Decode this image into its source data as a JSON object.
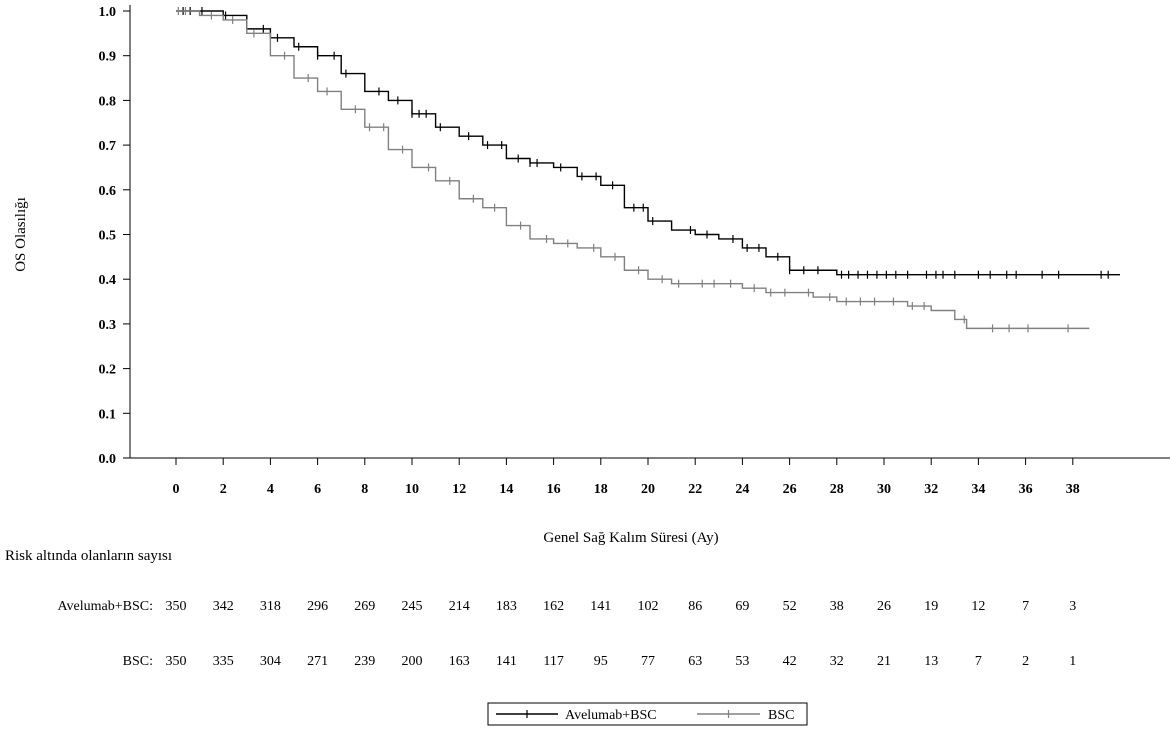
{
  "chart_data": {
    "type": "line",
    "xlabel": "Genel Sağ Kalım Süresi (Ay)",
    "ylabel": "OS Olasılığı",
    "xlim": [
      0,
      40
    ],
    "ylim": [
      0,
      1.0
    ],
    "x_ticks": [
      0,
      2,
      4,
      6,
      8,
      10,
      12,
      14,
      16,
      18,
      20,
      22,
      24,
      26,
      28,
      30,
      32,
      34,
      36,
      38
    ],
    "y_ticks": [
      "0.0",
      "0.1",
      "0.2",
      "0.3",
      "0.4",
      "0.5",
      "0.6",
      "0.7",
      "0.8",
      "0.9",
      "1.0"
    ],
    "grid": false,
    "legend_position": "bottom-center",
    "series": [
      {
        "name": "Avelumab+BSC",
        "color": "#000000",
        "points": [
          [
            0,
            1.0
          ],
          [
            1,
            1.0
          ],
          [
            2,
            0.99
          ],
          [
            3,
            0.96
          ],
          [
            4,
            0.94
          ],
          [
            5,
            0.92
          ],
          [
            6,
            0.9
          ],
          [
            7,
            0.86
          ],
          [
            8,
            0.82
          ],
          [
            9,
            0.8
          ],
          [
            10,
            0.77
          ],
          [
            11,
            0.74
          ],
          [
            12,
            0.72
          ],
          [
            13,
            0.7
          ],
          [
            14,
            0.67
          ],
          [
            15,
            0.66
          ],
          [
            16,
            0.65
          ],
          [
            17,
            0.63
          ],
          [
            18,
            0.61
          ],
          [
            19,
            0.56
          ],
          [
            20,
            0.53
          ],
          [
            21,
            0.51
          ],
          [
            22,
            0.5
          ],
          [
            23,
            0.49
          ],
          [
            24,
            0.47
          ],
          [
            25,
            0.45
          ],
          [
            26,
            0.42
          ],
          [
            27,
            0.42
          ],
          [
            28,
            0.41
          ],
          [
            30,
            0.41
          ],
          [
            35,
            0.41
          ],
          [
            40,
            0.41
          ]
        ],
        "censor_times": [
          0.3,
          0.6,
          1.1,
          2.1,
          3.7,
          4.3,
          5.2,
          6.0,
          6.7,
          7.2,
          8.6,
          9.4,
          10.0,
          10.3,
          10.6,
          11.2,
          12.4,
          13.2,
          13.8,
          14.5,
          15.0,
          15.3,
          16.3,
          17.2,
          17.8,
          18.5,
          19.4,
          19.8,
          20.2,
          21.8,
          22.5,
          23.6,
          24.2,
          24.7,
          25.5,
          26.0,
          26.6,
          27.2,
          28.2,
          28.5,
          28.9,
          29.3,
          29.7,
          30.1,
          30.5,
          31.0,
          31.8,
          32.2,
          32.5,
          33.0,
          34.0,
          34.5,
          35.2,
          35.6,
          36.7,
          37.4,
          39.2,
          39.5
        ]
      },
      {
        "name": "BSC",
        "color": "#808080",
        "points": [
          [
            0,
            1.0
          ],
          [
            1,
            0.99
          ],
          [
            2,
            0.98
          ],
          [
            3,
            0.95
          ],
          [
            4,
            0.9
          ],
          [
            5,
            0.85
          ],
          [
            6,
            0.82
          ],
          [
            7,
            0.78
          ],
          [
            8,
            0.74
          ],
          [
            9,
            0.69
          ],
          [
            10,
            0.65
          ],
          [
            11,
            0.62
          ],
          [
            12,
            0.58
          ],
          [
            13,
            0.56
          ],
          [
            14,
            0.52
          ],
          [
            15,
            0.49
          ],
          [
            16,
            0.48
          ],
          [
            17,
            0.47
          ],
          [
            18,
            0.45
          ],
          [
            19,
            0.42
          ],
          [
            20,
            0.4
          ],
          [
            21,
            0.39
          ],
          [
            22,
            0.39
          ],
          [
            23,
            0.39
          ],
          [
            24,
            0.38
          ],
          [
            25,
            0.37
          ],
          [
            26,
            0.37
          ],
          [
            27,
            0.36
          ],
          [
            28,
            0.35
          ],
          [
            29,
            0.35
          ],
          [
            30,
            0.35
          ],
          [
            31,
            0.34
          ],
          [
            32,
            0.33
          ],
          [
            33,
            0.31
          ],
          [
            33.5,
            0.29
          ],
          [
            35,
            0.29
          ],
          [
            38.7,
            0.29
          ]
        ],
        "censor_times": [
          0.1,
          0.4,
          1.5,
          2.4,
          3.3,
          4.6,
          5.6,
          6.4,
          7.6,
          8.2,
          8.8,
          9.6,
          10.7,
          11.6,
          12.6,
          13.5,
          14.6,
          15.7,
          16.6,
          17.7,
          18.6,
          19.6,
          20.6,
          21.3,
          22.3,
          22.8,
          23.5,
          24.5,
          25.2,
          25.8,
          26.8,
          27.7,
          28.4,
          29.0,
          29.6,
          30.4,
          31.2,
          31.7,
          33.4,
          34.6,
          35.3,
          36.1,
          37.8
        ]
      }
    ],
    "risk_table": {
      "title": "Risk altında olanların sayısı",
      "rows": [
        {
          "label": "Avelumab+BSC:",
          "values": [
            350,
            342,
            318,
            296,
            269,
            245,
            214,
            183,
            162,
            141,
            102,
            86,
            69,
            52,
            38,
            26,
            19,
            12,
            7,
            3
          ]
        },
        {
          "label": "BSC:",
          "values": [
            350,
            335,
            304,
            271,
            239,
            200,
            163,
            141,
            117,
            95,
            77,
            63,
            53,
            42,
            32,
            21,
            13,
            7,
            2,
            1
          ]
        }
      ]
    }
  }
}
